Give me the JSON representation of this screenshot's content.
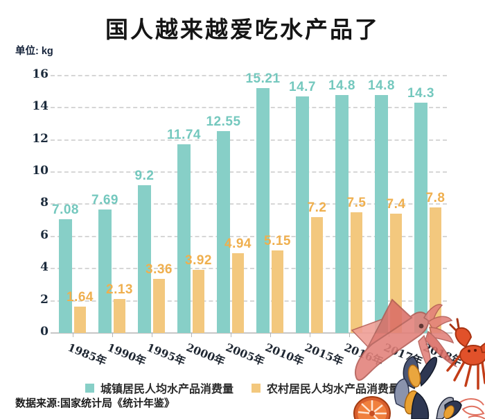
{
  "title": "国人越来越爱吃水产品了",
  "unit_label": "单位: kg",
  "source": "数据来源:国家统计局《统计年鉴》",
  "legend": [
    {
      "label": "城镇居民人均水产品消费量",
      "color": "#87CFC7"
    },
    {
      "label": "农村居民人均水产品消费量",
      "color": "#F3C87E"
    }
  ],
  "colors": {
    "urban_bar": "#87CFC7",
    "urban_label": "#74C8BE",
    "rural_bar": "#F3C87E",
    "rural_label": "#EFAF4E",
    "axis_text": "#1c2b3c",
    "grid": "#d6d6d6"
  },
  "chart_data": {
    "type": "bar",
    "title": "国人越来越爱吃水产品了",
    "ylabel": "单位: kg",
    "categories": [
      "1985年",
      "1990年",
      "1995年",
      "2000年",
      "2005年",
      "2010年",
      "2015年",
      "2016年",
      "2017年",
      "2018年"
    ],
    "series": [
      {
        "name": "城镇居民人均水产品消费量",
        "color": "#87CFC7",
        "values": [
          7.08,
          7.69,
          9.2,
          11.74,
          12.55,
          15.21,
          14.7,
          14.8,
          14.8,
          14.3
        ]
      },
      {
        "name": "农村居民人均水产品消费量",
        "color": "#F3C87E",
        "values": [
          1.64,
          2.13,
          3.36,
          3.92,
          4.94,
          5.15,
          7.2,
          7.5,
          7.4,
          7.8
        ]
      }
    ],
    "ylim": [
      0,
      16
    ],
    "yticks": [
      0,
      2,
      4,
      6,
      8,
      10,
      12,
      14,
      16
    ],
    "grid": "horizontal-dashed",
    "legend_position": "bottom",
    "xtick_rotation_deg": 22
  },
  "decorations": {
    "items": [
      "squid-illustration",
      "crab-illustration",
      "mussels-illustration",
      "salmon-slice-illustration",
      "shrimp-sketch-illustration"
    ]
  }
}
